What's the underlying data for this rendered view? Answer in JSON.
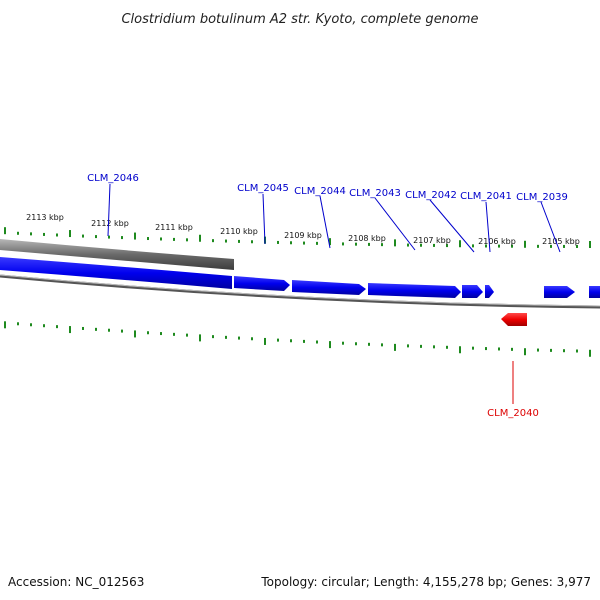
{
  "title": "Clostridium botulinum A2 str. Kyoto, complete genome",
  "accession_text": "Accession: NC_012563",
  "stats_text": "Topology: circular; Length: 4,155,278 bp; Genes: 3,977",
  "colors": {
    "forward_gene": "#0000ee",
    "reverse_gene": "#ee0000",
    "backbone": "#888888",
    "ticks": "#1e8a1e",
    "forward_label": "#0000cc",
    "reverse_label": "#dd0000"
  },
  "kbp_labels": [
    "2113 kbp",
    "2112 kbp",
    "2111 kbp",
    "2110 kbp",
    "2109 kbp",
    "2108 kbp",
    "2107 kbp",
    "2106 kbp",
    "2105 kbp"
  ],
  "genes": [
    {
      "name": "CLM_2046",
      "strand": "+"
    },
    {
      "name": "CLM_2045",
      "strand": "+"
    },
    {
      "name": "CLM_2044",
      "strand": "+"
    },
    {
      "name": "CLM_2043",
      "strand": "+"
    },
    {
      "name": "CLM_2042",
      "strand": "+"
    },
    {
      "name": "CLM_2041",
      "strand": "+"
    },
    {
      "name": "CLM_2039",
      "strand": "+"
    },
    {
      "name": "CLM_2040",
      "strand": "-"
    }
  ]
}
